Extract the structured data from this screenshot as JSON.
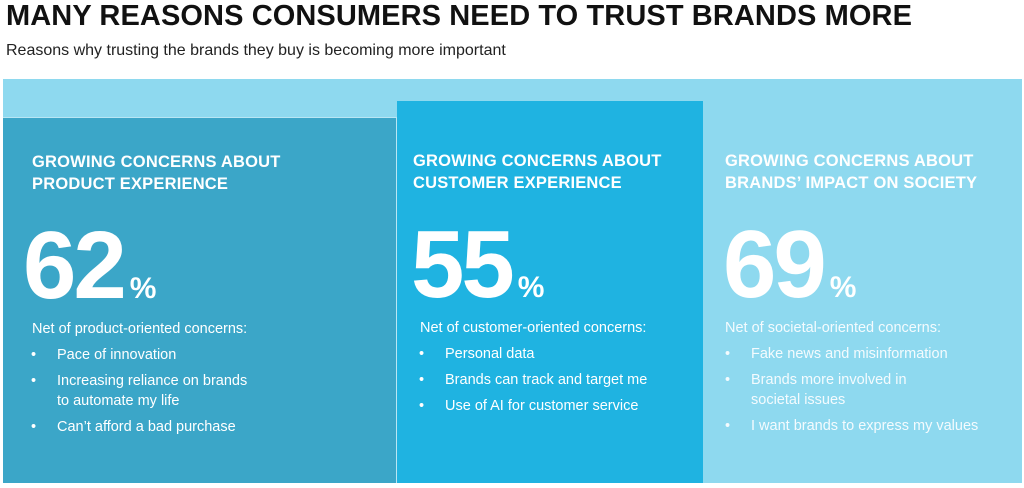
{
  "header": {
    "title": "MANY REASONS CONSUMERS NEED TO TRUST BRANDS MORE",
    "subtitle": "Reasons why trusting the brands they buy is becoming more important"
  },
  "colors": {
    "band": "#8ed9ef",
    "panel_product": "#3ba6c8",
    "panel_customer": "#1fb3e1",
    "panel_society": "#8ed9ef",
    "text": "#ffffff"
  },
  "panels": [
    {
      "heading_line1": "GROWING CONCERNS ABOUT",
      "heading_line2": "PRODUCT EXPERIENCE",
      "value": "62",
      "unit": "%",
      "net_label": "Net of product-oriented concerns:",
      "bullet_glyph": "•",
      "bullets": [
        {
          "line1": "Pace of innovation",
          "line2": ""
        },
        {
          "line1": "Increasing reliance on brands",
          "line2": "to automate my life"
        },
        {
          "line1": "Can’t afford a bad purchase",
          "line2": ""
        }
      ]
    },
    {
      "heading_line1": "GROWING CONCERNS ABOUT",
      "heading_line2": "CUSTOMER EXPERIENCE",
      "value": "55",
      "unit": "%",
      "net_label": "Net of customer-oriented concerns:",
      "bullet_glyph": "•",
      "bullets": [
        {
          "line1": "Personal data",
          "line2": ""
        },
        {
          "line1": "Brands can track and target me",
          "line2": ""
        },
        {
          "line1": "Use of AI for customer service",
          "line2": ""
        }
      ]
    },
    {
      "heading_line1": "GROWING CONCERNS ABOUT",
      "heading_line2": "BRANDS’ IMPACT ON SOCIETY",
      "value": "69",
      "unit": "%",
      "net_label": "Net of societal-oriented concerns:",
      "bullet_glyph": "•",
      "bullets": [
        {
          "line1": "Fake news and misinformation",
          "line2": ""
        },
        {
          "line1": "Brands more involved in",
          "line2": "societal issues"
        },
        {
          "line1": "I want brands to express my values",
          "line2": ""
        }
      ]
    }
  ]
}
